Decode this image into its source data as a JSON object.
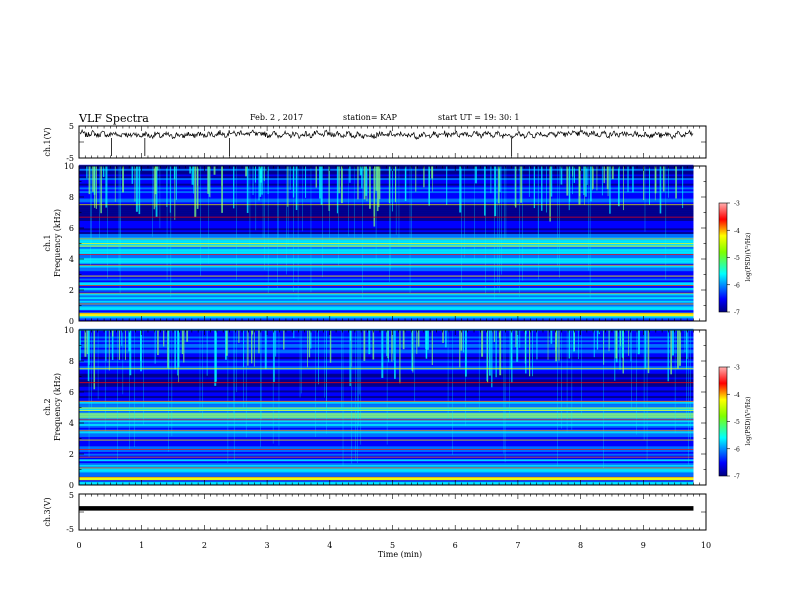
{
  "header": {
    "title": "VLF Spectra",
    "date": "Feb. 2  , 2017",
    "station": "station= KAP",
    "start": "start  UT  =   19: 30: 1"
  },
  "chart_data": [
    {
      "type": "line",
      "ylabel": "ch.1(V)",
      "ytick_labels": [
        "5",
        "-5"
      ],
      "ylim": [
        -5,
        5
      ],
      "xlim": [
        0,
        10
      ],
      "note": "noisy waveform trace near +2.5 V across 0–9.8 min",
      "x": [
        0,
        0.5,
        1,
        1.5,
        2,
        2.5,
        3,
        3.5,
        4,
        4.5,
        5,
        5.5,
        6,
        6.5,
        7,
        7.5,
        8,
        8.5,
        9,
        9.5,
        9.8
      ],
      "y": [
        2.6,
        2.4,
        2.2,
        2.0,
        2.3,
        2.8,
        2.4,
        2.2,
        2.5,
        2.1,
        2.3,
        2.0,
        2.6,
        2.4,
        2.2,
        2.5,
        2.7,
        2.4,
        2.3,
        2.1,
        2.6
      ]
    },
    {
      "type": "heatmap",
      "ylabel": "ch.1 Frequency (kHz)",
      "xlim": [
        0,
        10
      ],
      "data_end_min": 9.8,
      "ylim": [
        0,
        10
      ],
      "ytick_labels": [
        "0",
        "2",
        "4",
        "6",
        "8",
        "10"
      ],
      "colorbar": {
        "label": "log(PSD)(V²/Hz)",
        "ticks": [
          "-3",
          "-4",
          "-5",
          "-6",
          "-7"
        ],
        "range": [
          -7,
          -3
        ]
      },
      "bands_khz": [
        0.5,
        1.1,
        1.8,
        2.3,
        2.9,
        3.6,
        4.3,
        5.0,
        5.3,
        6.7,
        7.5
      ]
    },
    {
      "type": "heatmap",
      "ylabel": "ch.2 Frequency (kHz)",
      "xlim": [
        0,
        10
      ],
      "data_end_min": 9.8,
      "ylim": [
        0,
        10
      ],
      "ytick_labels": [
        "0",
        "2",
        "4",
        "6",
        "8",
        "10"
      ],
      "colorbar": {
        "label": "log(PSD)(V²/Hz)",
        "ticks": [
          "-3",
          "-4",
          "-5",
          "-6",
          "-7"
        ],
        "range": [
          -7,
          -3
        ]
      },
      "bands_khz": [
        0.5,
        1.1,
        1.8,
        2.3,
        2.9,
        3.5,
        4.2,
        4.8,
        5.4,
        6.6,
        7.5
      ]
    },
    {
      "type": "line",
      "ylabel": "ch.3(V)",
      "ytick_labels": [
        "5",
        "-5"
      ],
      "ylim": [
        -5,
        5
      ],
      "xlim": [
        0,
        10
      ],
      "x": [
        0,
        9.8
      ],
      "y": [
        1.0,
        1.0
      ]
    }
  ],
  "xaxis": {
    "label": "Time  (min)",
    "ticks": [
      "0",
      "1",
      "2",
      "3",
      "4",
      "5",
      "6",
      "7",
      "8",
      "9",
      "10"
    ]
  },
  "colors": {
    "jet": [
      "#00007f",
      "#0000ff",
      "#007fff",
      "#00ffff",
      "#7fff7f",
      "#ffff00",
      "#ff7f00",
      "#ff0000",
      "#7f0000"
    ],
    "trace": "#000000"
  }
}
